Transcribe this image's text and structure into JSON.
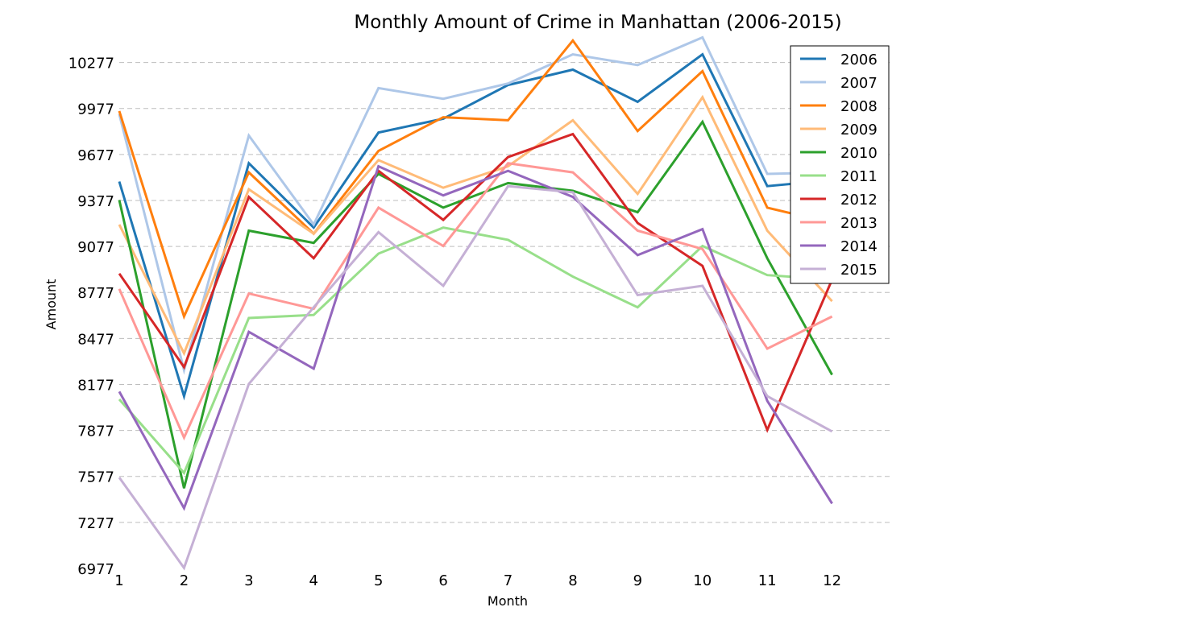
{
  "chart_data": {
    "type": "line",
    "title": "Monthly Amount of Crime in Manhattan (2006-2015)",
    "xlabel": "Month",
    "ylabel": "Amount",
    "x": [
      1,
      2,
      3,
      4,
      5,
      6,
      7,
      8,
      9,
      10,
      11,
      12
    ],
    "x_ticks": [
      "1",
      "2",
      "3",
      "4",
      "5",
      "6",
      "7",
      "8",
      "9",
      "10",
      "11",
      "12"
    ],
    "xlim": [
      1,
      13
    ],
    "ylim": [
      6977,
      10427
    ],
    "y_ticks": [
      6977,
      7277,
      7577,
      7877,
      8177,
      8477,
      8777,
      9077,
      9377,
      9677,
      9977,
      10277
    ],
    "grid": "horizontal dashed",
    "legend_position": "top-right",
    "series": [
      {
        "name": "2006",
        "color": "#1f77b4",
        "values": [
          9500,
          8100,
          9620,
          9200,
          9820,
          9910,
          10130,
          10230,
          10020,
          10330,
          9470,
          9510
        ]
      },
      {
        "name": "2007",
        "color": "#aec7e8",
        "values": [
          9940,
          8270,
          9800,
          9220,
          10110,
          10040,
          10140,
          10330,
          10260,
          10440,
          9550,
          9560
        ]
      },
      {
        "name": "2008",
        "color": "#ff7f0e",
        "values": [
          9960,
          8620,
          9560,
          9160,
          9700,
          9920,
          9900,
          10420,
          9830,
          10220,
          9330,
          9230
        ]
      },
      {
        "name": "2009",
        "color": "#ffbb78",
        "values": [
          9220,
          8380,
          9450,
          9160,
          9640,
          9460,
          9600,
          9900,
          9420,
          10050,
          9180,
          8720
        ]
      },
      {
        "name": "2010",
        "color": "#2ca02c",
        "values": [
          9380,
          7500,
          9180,
          9100,
          9550,
          9330,
          9490,
          9440,
          9300,
          9890,
          9000,
          8240
        ]
      },
      {
        "name": "2011",
        "color": "#98df8a",
        "values": [
          8080,
          7600,
          8610,
          8630,
          9030,
          9200,
          9120,
          8880,
          8680,
          9080,
          8890,
          8860
        ]
      },
      {
        "name": "2012",
        "color": "#d62728",
        "values": [
          8900,
          8290,
          9400,
          9000,
          9570,
          9250,
          9660,
          9810,
          9230,
          8950,
          7880,
          8860
        ]
      },
      {
        "name": "2013",
        "color": "#ff9896",
        "values": [
          8800,
          7830,
          8770,
          8670,
          9330,
          9080,
          9620,
          9560,
          9180,
          9060,
          8410,
          8620
        ]
      },
      {
        "name": "2014",
        "color": "#9467bd",
        "values": [
          8130,
          7370,
          8520,
          8280,
          9600,
          9410,
          9570,
          9400,
          9020,
          9190,
          8070,
          7400
        ]
      },
      {
        "name": "2015",
        "color": "#c5b0d5",
        "values": [
          7570,
          6980,
          8180,
          8680,
          9170,
          8820,
          9470,
          9430,
          8760,
          8820,
          8100,
          7870
        ]
      }
    ]
  }
}
